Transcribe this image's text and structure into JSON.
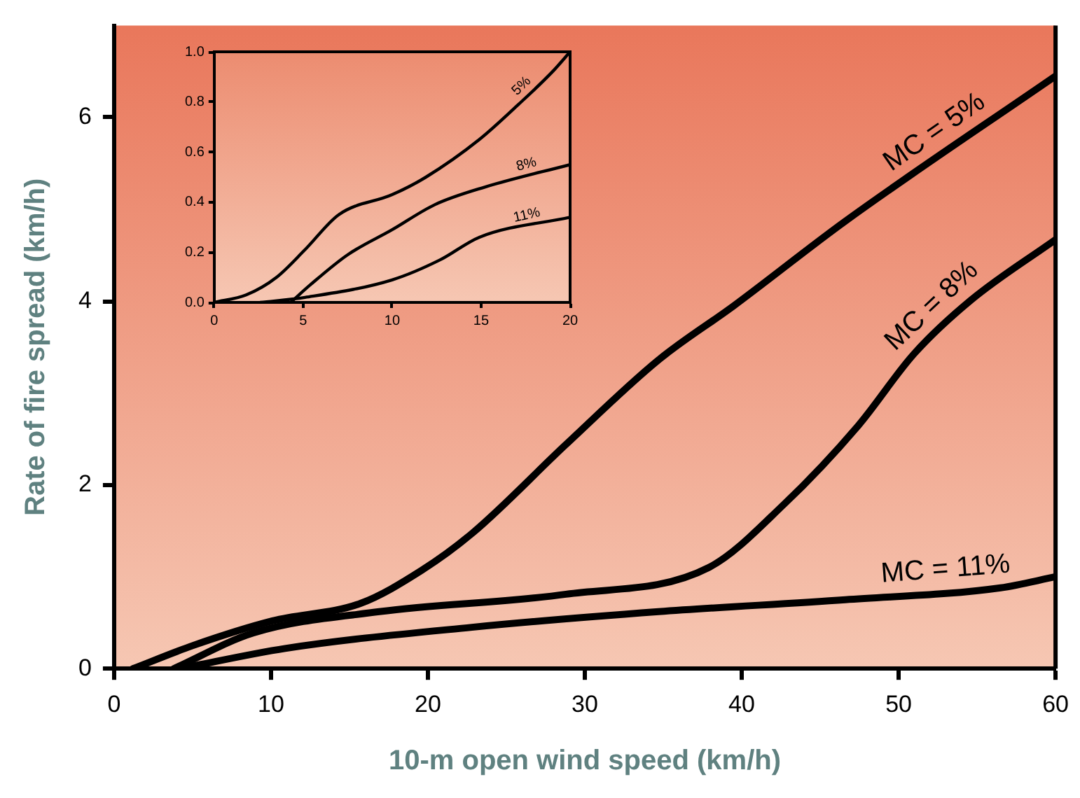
{
  "chart_data": [
    {
      "type": "line",
      "xlabel": "10-m open wind speed (km/h)",
      "ylabel": "Rate of fire spread (km/h)",
      "xlim": [
        0,
        60
      ],
      "ylim": [
        0,
        7
      ],
      "xticks": [
        0,
        10,
        20,
        30,
        40,
        50,
        60
      ],
      "yticks": [
        0,
        2,
        4,
        6
      ],
      "marker": "none",
      "line_style": "solid",
      "series": [
        {
          "name": "MC = 5%",
          "color": "#000000",
          "x": [
            1.2,
            5,
            10.1,
            15.7,
            19.6,
            22.8,
            28.8,
            34.7,
            39.5,
            46.6,
            60
          ],
          "values": [
            0,
            0.25,
            0.52,
            0.71,
            1.07,
            1.47,
            2.44,
            3.36,
            3.95,
            4.87,
            6.45
          ]
        },
        {
          "name": "MC = 8%",
          "color": "#000000",
          "x": [
            3.8,
            8.9,
            16.9,
            28.8,
            37.9,
            42.7,
            47.4,
            51,
            54.6,
            60
          ],
          "values": [
            0,
            0.39,
            0.62,
            0.81,
            1.1,
            1.79,
            2.64,
            3.43,
            4.01,
            4.67
          ]
        },
        {
          "name": "MC = 11%",
          "color": "#000000",
          "x": [
            4.2,
            10.9,
            22.8,
            34.7,
            46.6,
            56.5,
            60
          ],
          "values": [
            0,
            0.22,
            0.45,
            0.62,
            0.75,
            0.88,
            1.0
          ]
        }
      ]
    },
    {
      "type": "line",
      "xlim": [
        0,
        20
      ],
      "ylim": [
        0,
        1
      ],
      "xticks": [
        0,
        5,
        10,
        15,
        20
      ],
      "yticks": [
        {
          "value": 0,
          "label": "0.0"
        },
        0.2,
        0.4,
        0.6,
        0.8,
        {
          "value": 1,
          "label": "1.0"
        }
      ],
      "marker": "none",
      "line_style": "solid",
      "series": [
        {
          "name": "5%",
          "color": "#000000",
          "x": [
            0,
            1.8,
            3.5,
            5.1,
            7,
            10,
            11.9,
            14.9,
            17.1,
            19,
            20
          ],
          "values": [
            0,
            0.03,
            0.1,
            0.21,
            0.35,
            0.43,
            0.5,
            0.65,
            0.79,
            0.92,
            1.0
          ]
        },
        {
          "name": "8%",
          "color": "#000000",
          "x": [
            4.3,
            5.4,
            7.5,
            10,
            12.4,
            15.2,
            20
          ],
          "values": [
            0,
            0.07,
            0.19,
            0.29,
            0.39,
            0.46,
            0.55
          ]
        },
        {
          "name": "11%",
          "color": "#000000",
          "x": [
            2.6,
            5.1,
            10,
            12.7,
            14.9,
            20
          ],
          "values": [
            0,
            0.02,
            0.09,
            0.17,
            0.26,
            0.34
          ]
        }
      ]
    }
  ]
}
